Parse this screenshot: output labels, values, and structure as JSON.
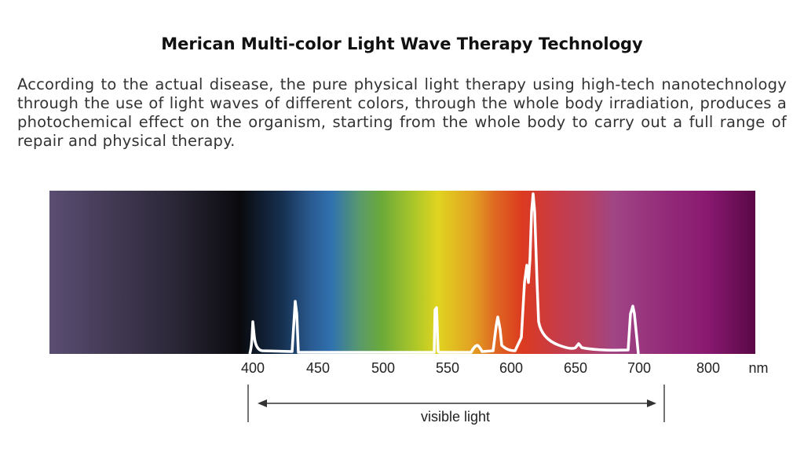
{
  "title": "Merican Multi-color Light Wave Therapy Technology",
  "paragraph": "According to the actual disease, the pure physical light therapy using high-tech nanotechnology through the use of light waves of different colors, through the whole body irradiation, produces a photochemical effect on the organism, starting from the whole body to carry out a full range of repair and physical therapy.",
  "spectrum": {
    "ticks": [
      "400",
      "450",
      "500",
      "550",
      "600",
      "650",
      "700",
      "800"
    ],
    "unit": "nm",
    "range_label": "visible light",
    "line_color": "#ffffff"
  }
}
